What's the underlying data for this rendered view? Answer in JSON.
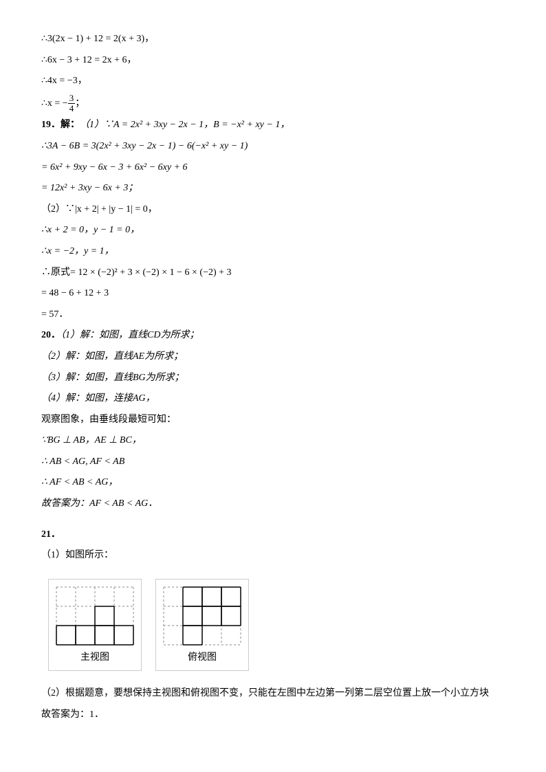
{
  "lines": {
    "l1": "∴3(2x − 1) + 12 = 2(x + 3)，",
    "l2": "∴6x − 3 + 12 = 2x + 6，",
    "l3": "∴4x = −3，",
    "l4a": "∴x = −",
    "l4b": "；",
    "frac_num": "3",
    "frac_den": "4",
    "q19": "19．解：",
    "l5": "（1）∵A = 2x² + 3xy − 2x − 1，B = −x² + xy − 1，",
    "l6": "∴3A − 6B = 3(2x² + 3xy − 2x − 1) − 6(−x² + xy − 1)",
    "l7": "= 6x² + 9xy − 6x − 3 + 6x² − 6xy + 6",
    "l8": "= 12x² + 3xy − 6x + 3；",
    "l9": "（2）∵|x + 2| + |y − 1| = 0，",
    "l10": "∴x + 2 = 0，y − 1 = 0，",
    "l11": "∴x = −2，y = 1，",
    "l12": "∴原式= 12 × (−2)² + 3 × (−2) × 1 − 6 × (−2) + 3",
    "l13": "= 48 − 6 + 12 + 3",
    "l14": "= 57．",
    "q20": "20．",
    "l15": "（1）解：如图，直线CD为所求；",
    "l16": "（2）解：如图，直线AE为所求；",
    "l17": "（3）解：如图，直线BG为所求；",
    "l18": "（4）解：如图，连接AG，",
    "l19": "观察图象，由垂线段最短可知：",
    "l20": "∵BG ⊥ AB，AE ⊥ BC，",
    "l21": "∴ AB < AG, AF < AB",
    "l22": "∴ AF < AB < AG，",
    "l23": "故答案为：AF < AB < AG．",
    "q21": "21．",
    "l24": "（1）如图所示：",
    "l25": "（2）根据题意，要想保持主视图和俯视图不变，只能在左图中左边第一列第二层空位置上放一个小立方块",
    "l26": "故答案为：1．"
  },
  "views": {
    "front": {
      "label": "主视图",
      "grid": {
        "cols": 4,
        "rows": 3,
        "cell": 28
      },
      "cells": [
        {
          "r": 1,
          "c": 2
        },
        {
          "r": 2,
          "c": 0
        },
        {
          "r": 2,
          "c": 1
        },
        {
          "r": 2,
          "c": 2
        },
        {
          "r": 2,
          "c": 3
        }
      ],
      "colors": {
        "dashed": "#888",
        "solid": "#000",
        "bg": "#fff"
      }
    },
    "top": {
      "label": "俯视图",
      "grid": {
        "cols": 4,
        "rows": 3,
        "cell": 28
      },
      "cells": [
        {
          "r": 0,
          "c": 1
        },
        {
          "r": 0,
          "c": 2
        },
        {
          "r": 0,
          "c": 3
        },
        {
          "r": 1,
          "c": 1
        },
        {
          "r": 1,
          "c": 2
        },
        {
          "r": 1,
          "c": 3
        },
        {
          "r": 2,
          "c": 1
        }
      ],
      "colors": {
        "dashed": "#888",
        "solid": "#000",
        "bg": "#fff"
      }
    }
  }
}
